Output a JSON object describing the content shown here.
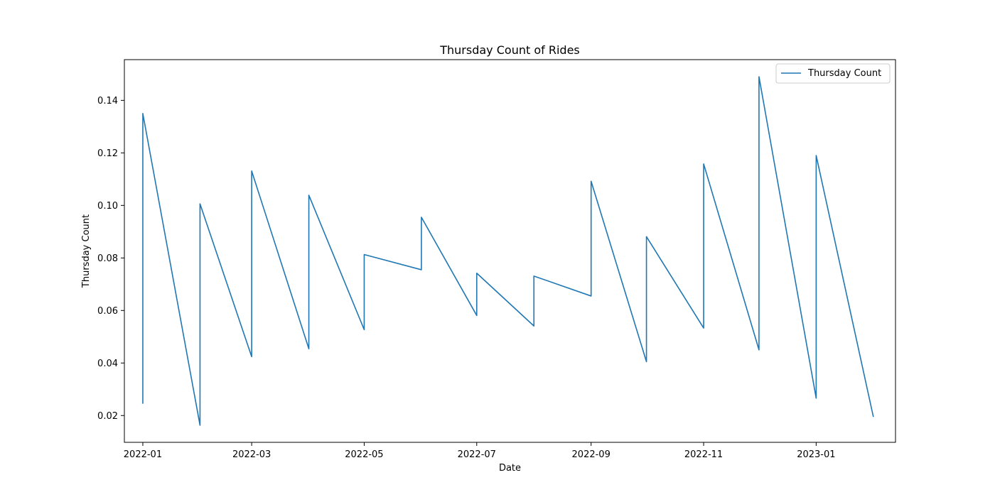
{
  "chart_data": {
    "type": "line",
    "title": "Thursday Count of Rides",
    "xlabel": "Date",
    "ylabel": "Thursday Count",
    "xlim": [
      "2021-12-22",
      "2023-02-13"
    ],
    "ylim": [
      0.0098,
      0.1555
    ],
    "x_ticks": [
      "2022-01-01",
      "2022-03-01",
      "2022-05-01",
      "2022-07-01",
      "2022-09-01",
      "2022-11-01",
      "2023-01-01"
    ],
    "x_tick_labels": [
      "2022-01",
      "2022-03",
      "2022-05",
      "2022-07",
      "2022-09",
      "2022-11",
      "2023-01"
    ],
    "y_ticks": [
      0.02,
      0.04,
      0.06,
      0.08,
      0.1,
      0.12,
      0.14
    ],
    "y_tick_labels": [
      "0.02",
      "0.04",
      "0.06",
      "0.08",
      "0.10",
      "0.12",
      "0.14"
    ],
    "grid": false,
    "legend": "top-right",
    "series": [
      {
        "name": "Thursday Count",
        "color": "#1f77b4",
        "x": [
          "2022-01-01",
          "2022-01-01",
          "2022-02-01",
          "2022-02-01",
          "2022-03-01",
          "2022-03-01",
          "2022-04-01",
          "2022-04-01",
          "2022-05-01",
          "2022-05-01",
          "2022-06-01",
          "2022-06-01",
          "2022-07-01",
          "2022-07-01",
          "2022-08-01",
          "2022-08-01",
          "2022-09-01",
          "2022-09-01",
          "2022-10-01",
          "2022-10-01",
          "2022-11-01",
          "2022-11-01",
          "2022-12-01",
          "2022-12-01",
          "2023-01-01",
          "2023-01-01",
          "2023-02-01"
        ],
        "y": [
          0.0245,
          0.135,
          0.0163,
          0.1006,
          0.0424,
          0.1131,
          0.0454,
          0.1039,
          0.0527,
          0.0813,
          0.0755,
          0.0955,
          0.0581,
          0.0742,
          0.0541,
          0.0731,
          0.0655,
          0.1092,
          0.0405,
          0.0881,
          0.0533,
          0.1158,
          0.045,
          0.149,
          0.0266,
          0.119,
          0.0195
        ]
      }
    ]
  }
}
